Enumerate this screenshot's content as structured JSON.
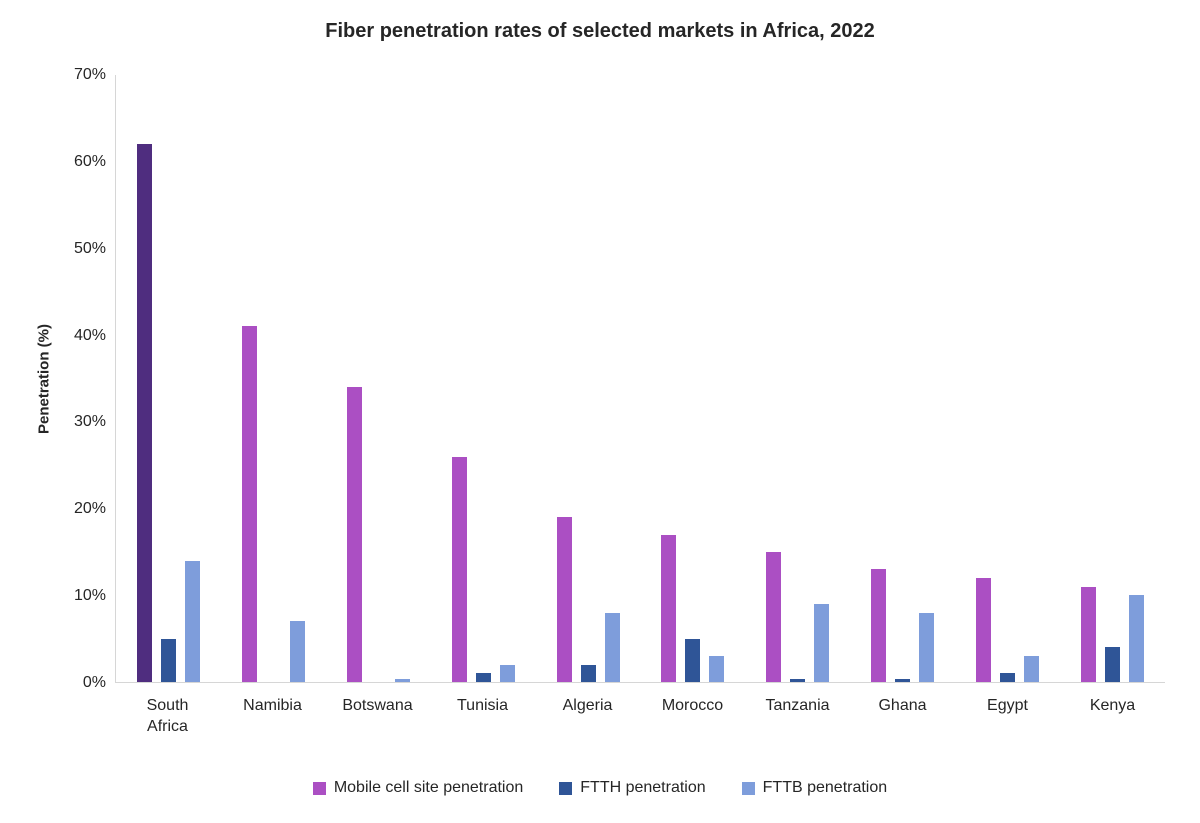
{
  "chart_data": {
    "type": "bar",
    "title": "Fiber penetration rates of selected markets in Africa, 2022",
    "ylabel": "Penetration (%)",
    "ylim": [
      0,
      70
    ],
    "ytick_step": 10,
    "ytick_labels": [
      "0%",
      "10%",
      "20%",
      "30%",
      "40%",
      "50%",
      "60%",
      "70%"
    ],
    "categories": [
      "South Africa",
      "Namibia",
      "Botswana",
      "Tunisia",
      "Algeria",
      "Morocco",
      "Tanzania",
      "Ghana",
      "Egypt",
      "Kenya"
    ],
    "series": [
      {
        "name": "Mobile cell site penetration",
        "color": "#AB4FC3",
        "bar_colors": {
          "0": "#4F2D7F"
        },
        "values": [
          62,
          41,
          34,
          26,
          19,
          17,
          15,
          13,
          12,
          11
        ]
      },
      {
        "name": "FTTH penetration",
        "color": "#2F5597",
        "values": [
          5,
          0,
          0,
          1,
          2,
          5,
          0.3,
          0.3,
          1,
          4
        ]
      },
      {
        "name": "FTTB penetration",
        "color": "#7E9DDB",
        "values": [
          14,
          7,
          0.3,
          2,
          8,
          3,
          9,
          8,
          3,
          10
        ]
      }
    ],
    "legend_position": "bottom",
    "grid": false,
    "axis_color": "#D6D6D6",
    "text_color": "#262626",
    "background_color": "#FFFFFF"
  }
}
